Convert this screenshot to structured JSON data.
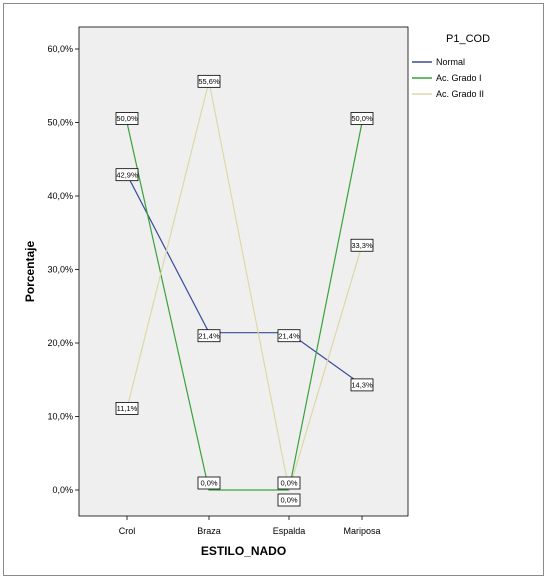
{
  "chart_data": {
    "type": "line",
    "xlabel": "ESTILO_NADO",
    "ylabel": "Porcentaje",
    "categories": [
      "Crol",
      "Braza",
      "Espalda",
      "Mariposa"
    ],
    "ylim": [
      0,
      60
    ],
    "yticks": [
      "0,0%",
      "10,0%",
      "20,0%",
      "30,0%",
      "40,0%",
      "50,0%",
      "60,0%"
    ],
    "ytick_values": [
      0,
      10,
      20,
      30,
      40,
      50,
      60
    ],
    "legend": {
      "title": "P1_COD",
      "placement": "right",
      "entries": [
        "Normal",
        "Ac. Grado I",
        "Ac. Grado II"
      ]
    },
    "series": [
      {
        "name": "Normal",
        "color": "#3a4c9b",
        "values": [
          42.9,
          21.4,
          21.4,
          14.3
        ],
        "labels": [
          "42,9%",
          "21,4%",
          "21,4%",
          "14,3%"
        ]
      },
      {
        "name": "Ac. Grado I",
        "color": "#3aa23a",
        "values": [
          50.0,
          0.0,
          0.0,
          50.0
        ],
        "labels": [
          "50,0%",
          "0,0%",
          "0,0%",
          "50,0%"
        ]
      },
      {
        "name": "Ac. Grado II",
        "color": "#dcd9a6",
        "values": [
          11.1,
          55.6,
          0.0,
          33.3
        ],
        "labels": [
          "11,1%",
          "55,6%",
          "0,0%",
          "33,3%"
        ]
      }
    ],
    "plot_background": "#efefef",
    "grid": false
  }
}
